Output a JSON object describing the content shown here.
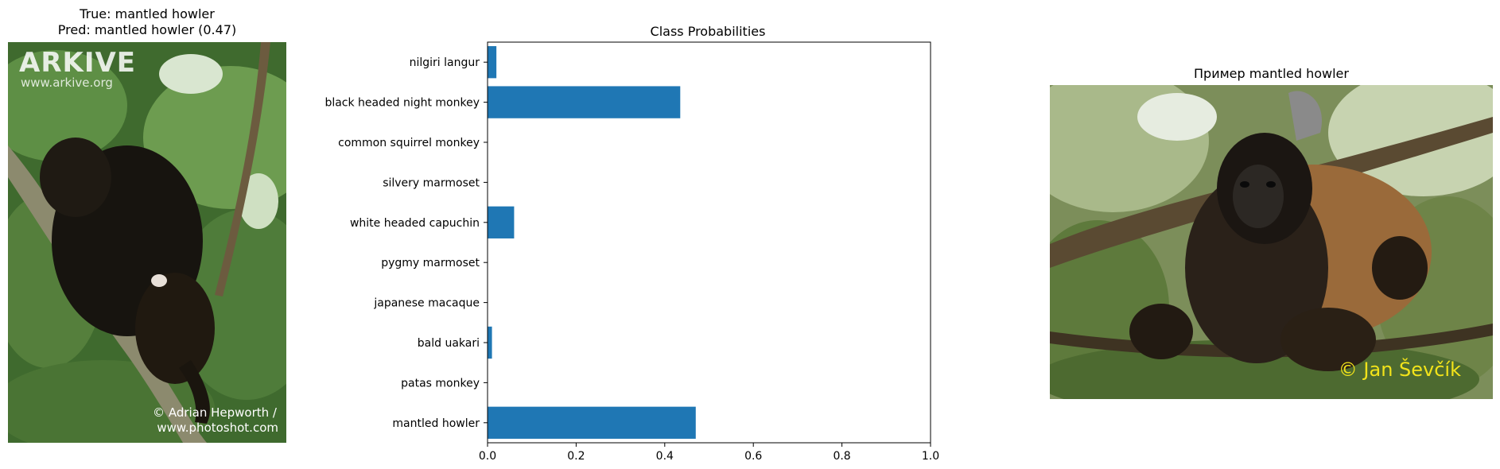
{
  "left_panel": {
    "title_line1": "True: mantled howler",
    "title_line2": "Pred: mantled howler (0.47)",
    "watermark_logo": "ARKIVE",
    "watermark_url": "www.arkive.org",
    "credit_line1": "© Adrian Hepworth /",
    "credit_line2": "www.photoshot.com"
  },
  "right_panel": {
    "title": "Пример mantled howler",
    "credit": "© Jan Ševčík"
  },
  "chart_data": {
    "type": "bar",
    "orientation": "horizontal",
    "title": "Class Probabilities",
    "xlabel": "",
    "ylabel": "",
    "xlim": [
      0,
      1.0
    ],
    "xticks": [
      "0.0",
      "0.2",
      "0.4",
      "0.6",
      "0.8",
      "1.0"
    ],
    "categories": [
      "mantled howler",
      "patas monkey",
      "bald uakari",
      "japanese macaque",
      "pygmy marmoset",
      "white headed capuchin",
      "silvery marmoset",
      "common squirrel monkey",
      "black headed night monkey",
      "nilgiri langur"
    ],
    "values": [
      0.47,
      0.0,
      0.01,
      0.0,
      0.0,
      0.06,
      0.0,
      0.0,
      0.435,
      0.02
    ],
    "grid": false,
    "color": "#1f77b4"
  }
}
